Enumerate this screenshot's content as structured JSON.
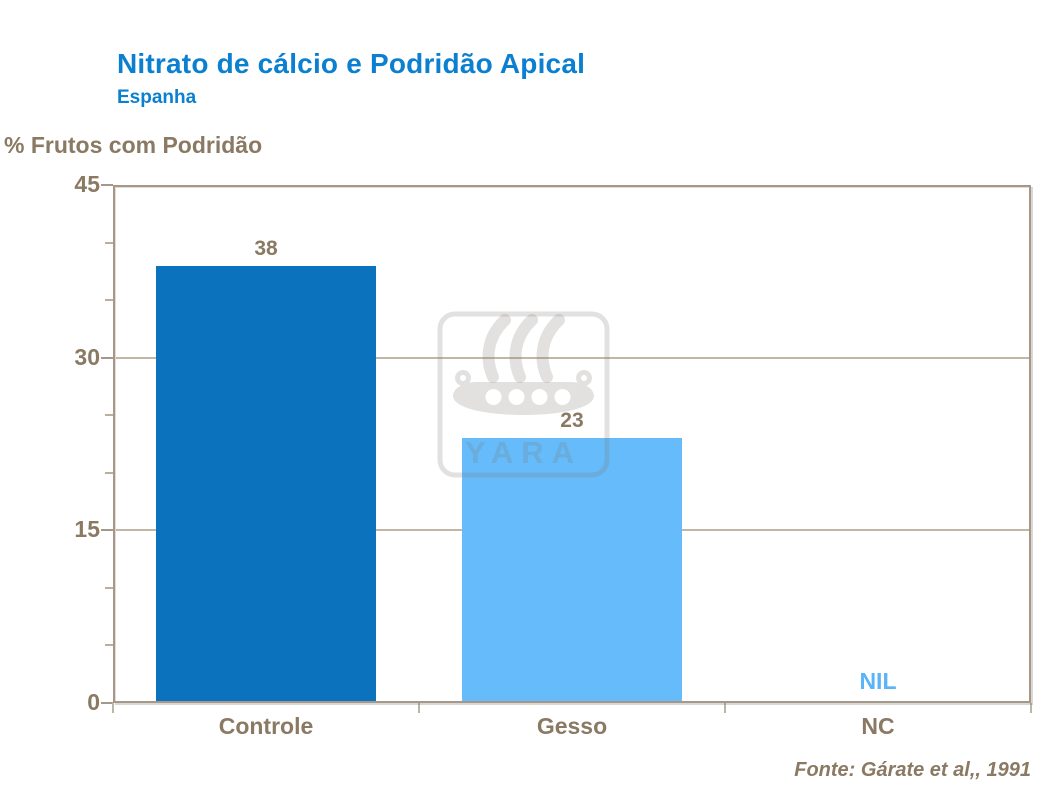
{
  "chart_data": {
    "type": "bar",
    "title": "Nitrato de cálcio e Podridão Apical",
    "subtitle": "Espanha",
    "ylabel": "% Frutos com Podridão",
    "source": "Fonte: Gárate et al,, 1991",
    "categories": [
      "Controle",
      "Gesso",
      "NC"
    ],
    "values": [
      38,
      23,
      0
    ],
    "value_labels": [
      "38",
      "23",
      "NIL"
    ],
    "bar_colors": [
      "#0B72BE",
      "#66BBFA",
      null
    ],
    "value_label_colors": [
      "#8A7963",
      "#8A7963",
      "#5BB4F8"
    ],
    "ylim": [
      0,
      45
    ],
    "yticks": [
      0,
      15,
      30,
      45
    ],
    "minor_tick_step": 5,
    "grid": "horizontal-at-major-ticks",
    "legend": "none",
    "watermark": "YARA"
  },
  "colors": {
    "title_blue": "#0B7FD0",
    "text_brown": "#8A7963",
    "axis_line": "#A5988A",
    "gridline": "#C2B7A7",
    "bar_dark_blue": "#0B72BE",
    "bar_light_blue": "#66BBFA",
    "nil_blue": "#5BB4F8",
    "watermark_gray": "rgba(125,120,115,0.22)"
  }
}
